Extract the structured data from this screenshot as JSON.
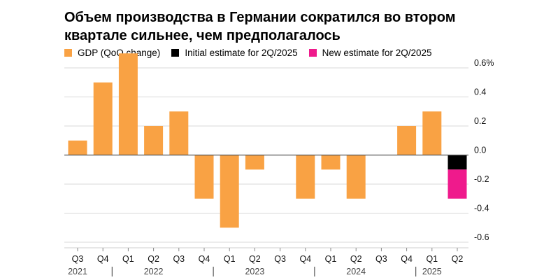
{
  "title": "Объем производства в Германии сократился во втором квартале сильнее, чем предполагалось",
  "legend": [
    {
      "label": "GDP (QoQ change)",
      "color": "#f9a244"
    },
    {
      "label": "Initial estimate for 2Q/2025",
      "color": "#000000"
    },
    {
      "label": "New estimate for 2Q/2025",
      "color": "#ef1a8c"
    }
  ],
  "chart_data": {
    "type": "bar",
    "categories": [
      "Q3",
      "Q4",
      "Q1",
      "Q2",
      "Q3",
      "Q4",
      "Q1",
      "Q2",
      "Q3",
      "Q4",
      "Q1",
      "Q2",
      "Q3",
      "Q4",
      "Q1",
      "Q2"
    ],
    "year_labels": [
      {
        "label": "2021",
        "category_index": 0
      },
      {
        "label": "2022",
        "category_index": 3
      },
      {
        "label": "2023",
        "category_index": 7
      },
      {
        "label": "2024",
        "category_index": 11
      },
      {
        "label": "2025",
        "category_index": 14
      }
    ],
    "year_separators_after": [
      1,
      5,
      9,
      13
    ],
    "series": [
      {
        "name": "GDP (QoQ change)",
        "color": "#f9a244",
        "values": [
          0.1,
          0.5,
          0.7,
          0.2,
          0.3,
          -0.3,
          -0.5,
          -0.1,
          0.0,
          -0.3,
          -0.1,
          -0.3,
          0.0,
          0.2,
          0.3,
          null
        ]
      },
      {
        "name": "Initial estimate for 2Q/2025",
        "color": "#000000",
        "values": [
          null,
          null,
          null,
          null,
          null,
          null,
          null,
          null,
          null,
          null,
          null,
          null,
          null,
          null,
          null,
          -0.1
        ]
      },
      {
        "name": "New estimate for 2Q/2025",
        "color": "#ef1a8c",
        "values": [
          null,
          null,
          null,
          null,
          null,
          null,
          null,
          null,
          null,
          null,
          null,
          null,
          null,
          null,
          null,
          -0.3
        ]
      }
    ],
    "q2_2025_bar": {
      "initial_segment": [
        0,
        -0.1
      ],
      "new_segment": [
        -0.1,
        -0.3
      ]
    },
    "y_ticks": [
      0.6,
      0.4,
      0.2,
      0.0,
      -0.2,
      -0.4,
      -0.6
    ],
    "y_tick_labels": [
      "0.6%",
      "0.4",
      "0.2",
      "0.0",
      "-0.2",
      "-0.4",
      "-0.6"
    ],
    "ylim": [
      -0.6,
      0.6
    ],
    "grid": true,
    "y_axis_position": "right",
    "legend_position": "top-left"
  }
}
